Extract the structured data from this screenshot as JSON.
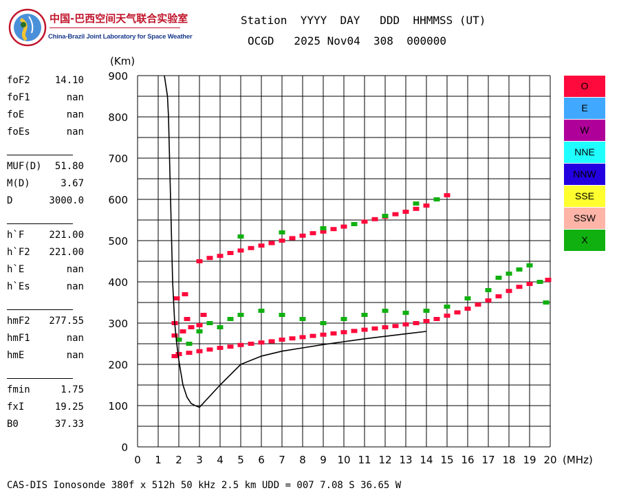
{
  "logo": {
    "title": "中国-巴西空间天气联合实验室",
    "subtitle": "China-Brazil Joint Laboratory for Space Weather"
  },
  "header": {
    "line1": "Station  YYYY  DAY   DDD  HHMMSS (UT)",
    "line2": "OCGD   2025 Nov04  308  000000"
  },
  "params": [
    {
      "label": "foF2",
      "value": "14.10"
    },
    {
      "label": "foF1",
      "value": "nan"
    },
    {
      "label": "foE",
      "value": "nan"
    },
    {
      "label": "foEs",
      "value": "nan"
    },
    {
      "label": "MUF(D)",
      "value": "51.80"
    },
    {
      "label": "M(D)",
      "value": "3.67"
    },
    {
      "label": "D",
      "value": "3000.0"
    },
    {
      "label": "h`F",
      "value": "221.00"
    },
    {
      "label": "h`F2",
      "value": "221.00"
    },
    {
      "label": "h`E",
      "value": "nan"
    },
    {
      "label": "h`Es",
      "value": "nan"
    },
    {
      "label": "hmF2",
      "value": "277.55"
    },
    {
      "label": "hmF1",
      "value": "nan"
    },
    {
      "label": "hmE",
      "value": "nan"
    },
    {
      "label": "fmin",
      "value": "1.75"
    },
    {
      "label": "fxI",
      "value": "19.25"
    },
    {
      "label": "B0",
      "value": "37.33"
    }
  ],
  "legend": [
    {
      "label": "O",
      "color": "#ff0a3c",
      "text_color": "#000000"
    },
    {
      "label": "E",
      "color": "#40a8ff",
      "text_color": "#000000"
    },
    {
      "label": "W",
      "color": "#b0009a",
      "text_color": "#000000"
    },
    {
      "label": "NNE",
      "color": "#20ffff",
      "text_color": "#000000"
    },
    {
      "label": "NNW",
      "color": "#2200e0",
      "text_color": "#000000"
    },
    {
      "label": "SSE",
      "color": "#ffff30",
      "text_color": "#000000"
    },
    {
      "label": "SSW",
      "color": "#ffb4a8",
      "text_color": "#000000"
    },
    {
      "label": "X",
      "color": "#10b010",
      "text_color": "#000000"
    }
  ],
  "footer": "CAS-DIS Ionosonde 380f x 512h 50 kHz 2.5 km UDD = 007 7.08 S 36.65 W",
  "chart_data": {
    "type": "scatter",
    "xlabel": "(MHz)",
    "ylabel": "(Km)",
    "xlim": [
      0,
      20
    ],
    "ylim": [
      0,
      900
    ],
    "x_ticks": [
      0,
      1,
      2,
      3,
      4,
      5,
      6,
      7,
      8,
      9,
      10,
      11,
      12,
      13,
      14,
      15,
      16,
      17,
      18,
      19,
      20
    ],
    "y_ticks": [
      0,
      100,
      200,
      300,
      400,
      500,
      600,
      700,
      800,
      900
    ],
    "grid": true,
    "series": [
      {
        "mode": "O",
        "color": "#ff0a3c",
        "points": [
          [
            1.8,
            220
          ],
          [
            2.0,
            225
          ],
          [
            2.5,
            228
          ],
          [
            3.0,
            232
          ],
          [
            3.5,
            236
          ],
          [
            4.0,
            240
          ],
          [
            4.5,
            243
          ],
          [
            5.0,
            247
          ],
          [
            5.5,
            250
          ],
          [
            6.0,
            253
          ],
          [
            6.5,
            256
          ],
          [
            7.0,
            260
          ],
          [
            7.5,
            263
          ],
          [
            8.0,
            266
          ],
          [
            8.5,
            269
          ],
          [
            9.0,
            272
          ],
          [
            9.5,
            275
          ],
          [
            10.0,
            278
          ],
          [
            10.5,
            281
          ],
          [
            11.0,
            284
          ],
          [
            11.5,
            287
          ],
          [
            12.0,
            290
          ],
          [
            12.5,
            293
          ],
          [
            13.0,
            297
          ],
          [
            13.5,
            300
          ],
          [
            14.0,
            305
          ],
          [
            14.5,
            310
          ],
          [
            15.0,
            318
          ],
          [
            15.5,
            326
          ],
          [
            16.0,
            335
          ],
          [
            16.5,
            345
          ],
          [
            17.0,
            355
          ],
          [
            17.5,
            365
          ],
          [
            18.0,
            378
          ],
          [
            18.5,
            388
          ],
          [
            19.0,
            395
          ],
          [
            19.5,
            400
          ],
          [
            19.9,
            405
          ],
          [
            1.8,
            270
          ],
          [
            2.2,
            280
          ],
          [
            2.6,
            290
          ],
          [
            3.0,
            295
          ],
          [
            1.8,
            300
          ],
          [
            2.4,
            310
          ],
          [
            3.2,
            320
          ],
          [
            1.9,
            360
          ],
          [
            2.3,
            370
          ],
          [
            3.0,
            450
          ],
          [
            3.5,
            458
          ],
          [
            4.0,
            463
          ],
          [
            4.5,
            470
          ],
          [
            5.0,
            476
          ],
          [
            5.5,
            482
          ],
          [
            6.0,
            488
          ],
          [
            6.5,
            494
          ],
          [
            7.0,
            500
          ],
          [
            7.5,
            506
          ],
          [
            8.0,
            512
          ],
          [
            8.5,
            518
          ],
          [
            9.0,
            522
          ],
          [
            9.5,
            528
          ],
          [
            10.0,
            534
          ],
          [
            10.5,
            540
          ],
          [
            11.0,
            546
          ],
          [
            11.5,
            552
          ],
          [
            12.0,
            558
          ],
          [
            12.5,
            564
          ],
          [
            13.0,
            570
          ],
          [
            13.5,
            577
          ],
          [
            14.0,
            585
          ],
          [
            15.0,
            610
          ]
        ]
      },
      {
        "mode": "X",
        "color": "#10b010",
        "points": [
          [
            2.0,
            260
          ],
          [
            2.5,
            250
          ],
          [
            3.0,
            280
          ],
          [
            3.5,
            300
          ],
          [
            4.0,
            290
          ],
          [
            4.5,
            310
          ],
          [
            5.0,
            320
          ],
          [
            6.0,
            330
          ],
          [
            7.0,
            320
          ],
          [
            8.0,
            310
          ],
          [
            9.0,
            300
          ],
          [
            10.0,
            310
          ],
          [
            11.0,
            320
          ],
          [
            12.0,
            330
          ],
          [
            13.0,
            325
          ],
          [
            14.0,
            330
          ],
          [
            15.0,
            340
          ],
          [
            16.0,
            360
          ],
          [
            17.0,
            380
          ],
          [
            17.5,
            410
          ],
          [
            18.0,
            420
          ],
          [
            18.5,
            430
          ],
          [
            19.0,
            440
          ],
          [
            19.5,
            400
          ],
          [
            19.8,
            350
          ],
          [
            5.0,
            510
          ],
          [
            7.0,
            520
          ],
          [
            9.0,
            530
          ],
          [
            10.5,
            540
          ],
          [
            12.0,
            560
          ],
          [
            13.5,
            590
          ],
          [
            14.5,
            600
          ]
        ]
      }
    ],
    "profile_curve": {
      "x": [
        1.3,
        1.45,
        1.5,
        1.55,
        1.6,
        1.65,
        1.7,
        1.8,
        1.9,
        2.0,
        2.2,
        2.4,
        2.6,
        2.8,
        3.0,
        4.0,
        5.0,
        6.0,
        7.0,
        8.0,
        9.0,
        10.0,
        11.0,
        12.0,
        13.0,
        14.0
      ],
      "y": [
        900,
        850,
        800,
        700,
        600,
        500,
        400,
        300,
        250,
        210,
        150,
        120,
        105,
        100,
        96,
        150,
        200,
        220,
        232,
        240,
        248,
        255,
        262,
        268,
        274,
        280
      ]
    }
  }
}
